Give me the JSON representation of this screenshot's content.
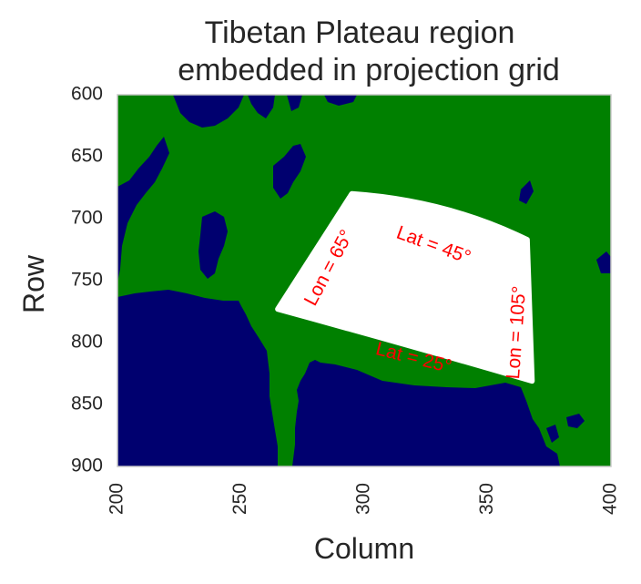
{
  "chart_data": {
    "type": "heatmap",
    "title_lines": [
      "Tibetan Plateau region",
      "embedded in projection grid"
    ],
    "xlabel": "Column",
    "ylabel": "Row",
    "xlim": [
      200,
      400
    ],
    "ylim": [
      900,
      600
    ],
    "x_ticks": [
      200,
      250,
      300,
      350,
      400
    ],
    "y_ticks": [
      600,
      650,
      700,
      750,
      800,
      850,
      900
    ],
    "grid": false,
    "colors": {
      "ocean": "#00006f",
      "land": "#008000",
      "region": "#ffffff",
      "annotation": "#ff0000",
      "frame": "#c8c8c8"
    },
    "region": {
      "name": "Tibetan Plateau region",
      "corners": {
        "lon65_lat45": [
          295,
          680
        ],
        "lon105_lat45": [
          366,
          717
        ],
        "lon105_lat25": [
          368,
          831
        ],
        "lon65_lat25": [
          265,
          773
        ]
      }
    },
    "annotations": [
      {
        "text": "Lon = 65°",
        "x": 286,
        "y": 740,
        "rotation": -62
      },
      {
        "text": "Lat = 45°",
        "x": 328,
        "y": 722,
        "rotation": 20
      },
      {
        "text": "Lat = 25°",
        "x": 320,
        "y": 813,
        "rotation": 14
      },
      {
        "text": "Lon = 105°",
        "x": 362,
        "y": 792,
        "rotation": -86
      }
    ]
  }
}
